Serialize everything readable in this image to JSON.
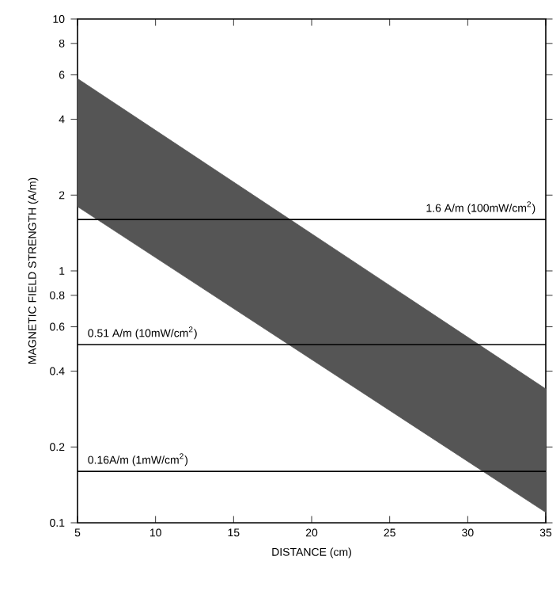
{
  "chart_data": {
    "type": "area",
    "xlabel": "DISTANCE (cm)",
    "ylabel": "MAGNETIC FIELD STRENGTH (A/m)",
    "log": "y",
    "xlim": [
      5,
      35
    ],
    "xticks": [
      5,
      10,
      15,
      20,
      25,
      30,
      35
    ],
    "ylim": [
      0.1,
      10
    ],
    "yticks": [
      0.1,
      0.2,
      0.4,
      0.6,
      0.8,
      1,
      2,
      4,
      6,
      8,
      10
    ],
    "series": [
      {
        "type": "area",
        "x": [
          5,
          35
        ],
        "values": [
          null,
          null
        ],
        "lower": [
          1.8,
          0.11
        ],
        "upper": [
          5.8,
          0.34
        ],
        "color": "#555555"
      }
    ],
    "ref_lines": [
      {
        "axis": "y",
        "value": 1.6,
        "label": "1.6 A/m (100mW/cm$^{2}$)"
      },
      {
        "axis": "y",
        "value": 0.51,
        "label": "0.51 A/m (10mW/cm$^{2}$)"
      },
      {
        "axis": "y",
        "value": 0.16,
        "label": "0.16A/m (1mW/cm$^{2}$)"
      }
    ]
  }
}
